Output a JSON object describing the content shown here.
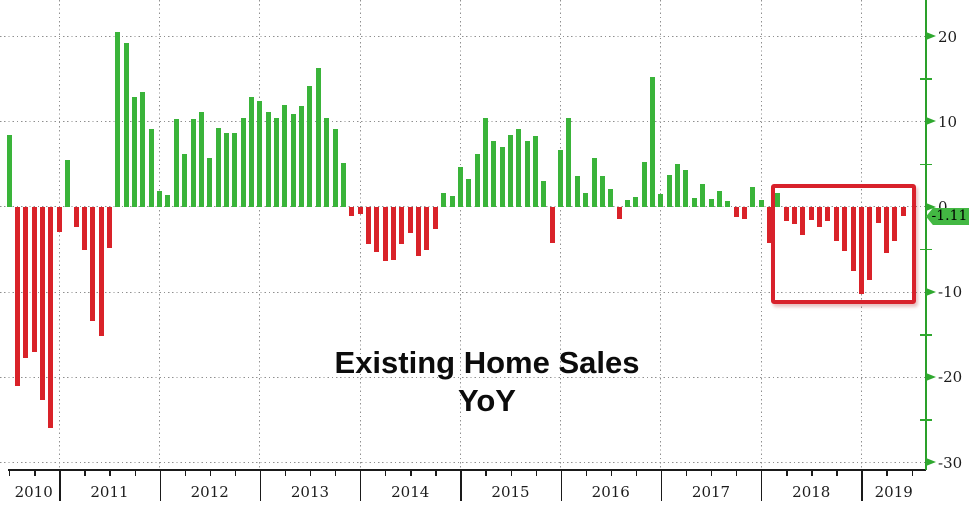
{
  "title": {
    "line1": "Existing Home Sales",
    "line2": "YoY"
  },
  "current_value": {
    "label": "-1.11"
  },
  "colors": {
    "positive_bar": "#3ab43a",
    "negative_bar": "#d92229",
    "axis_green": "#2aa02a",
    "badge_green": "#43b843",
    "highlight_box_red": "#d8212b",
    "grid_dot_gray": "#8f8f8f",
    "x_axis_black": "#1a1a1a",
    "title_color": "#0c0c0c"
  },
  "y_axis": {
    "side": "right",
    "major_ticks": [
      {
        "value": 20,
        "label": "20"
      },
      {
        "value": 10,
        "label": "10"
      },
      {
        "value": 0,
        "label": "0"
      },
      {
        "value": -10,
        "label": "-10"
      },
      {
        "value": -20,
        "label": "-20"
      },
      {
        "value": -30,
        "label": "-30"
      }
    ],
    "minor_ticks": [
      15,
      5,
      -5,
      -15,
      -25
    ]
  },
  "x_axis": {
    "year_labels": [
      "2010",
      "2011",
      "2012",
      "2013",
      "2014",
      "2015",
      "2016",
      "2017",
      "2018",
      "2019"
    ]
  },
  "chart_data": {
    "type": "bar",
    "title": "Existing Home Sales YoY",
    "series_name": "Existing Home Sales YoY (%)",
    "start_month": "2010-06",
    "end_month": "2019-05",
    "frequency": "monthly",
    "ylim": [
      -30,
      24
    ],
    "grid": "dotted",
    "values": [
      8.4,
      -21.0,
      -17.7,
      -17.0,
      -22.6,
      -25.9,
      -2.9,
      5.5,
      -2.3,
      -5.0,
      -13.4,
      -15.1,
      -4.8,
      20.5,
      19.2,
      12.9,
      13.5,
      9.2,
      1.9,
      1.4,
      10.3,
      6.2,
      10.3,
      11.1,
      5.7,
      9.3,
      8.7,
      8.7,
      10.4,
      12.9,
      12.5,
      11.2,
      10.5,
      12.0,
      10.9,
      11.8,
      14.2,
      16.3,
      10.4,
      9.2,
      5.2,
      -1.0,
      -0.8,
      -4.3,
      -5.3,
      -6.3,
      -6.2,
      -4.3,
      -3.1,
      -5.8,
      -5.0,
      -2.6,
      1.6,
      1.3,
      4.7,
      3.3,
      6.2,
      10.4,
      7.8,
      7.1,
      8.5,
      9.2,
      7.8,
      8.3,
      3.0,
      -4.2,
      6.7,
      10.4,
      3.6,
      1.7,
      5.8,
      3.6,
      2.1,
      -1.4,
      0.8,
      1.2,
      5.3,
      15.3,
      1.5,
      3.8,
      5.1,
      4.4,
      1.1,
      2.7,
      0.9,
      1.9,
      0.7,
      -1.2,
      -1.4,
      2.4,
      0.8,
      -4.2,
      1.7,
      -1.7,
      -2.0,
      -3.3,
      -1.5,
      -2.4,
      -1.6,
      -4.0,
      -5.2,
      -7.5,
      -10.2,
      -8.6,
      -1.9,
      -5.4,
      -4.0,
      -1.11
    ],
    "last_value_label": "-1.11",
    "highlight_box": {
      "from_month": "2018-02",
      "to_month": "2019-05",
      "style": "red-outline"
    },
    "legend": "none"
  }
}
